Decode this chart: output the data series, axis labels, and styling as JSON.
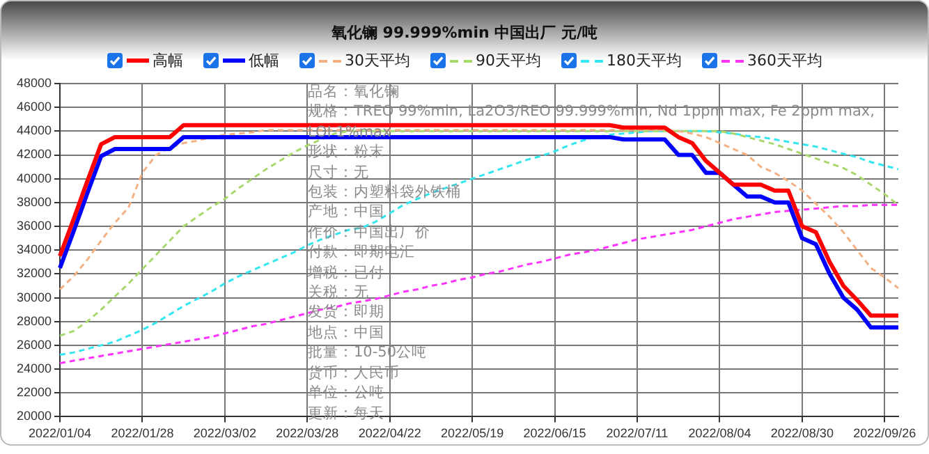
{
  "chart_data": {
    "type": "line",
    "title": "氧化镧 99.999%min 中国出厂 元/吨",
    "categories": [
      "2022/01/04",
      null,
      null,
      null,
      null,
      null,
      "2022/01/28",
      null,
      null,
      null,
      null,
      null,
      "2022/03/02",
      null,
      null,
      null,
      null,
      null,
      "2022/03/28",
      null,
      null,
      null,
      null,
      null,
      "2022/04/22",
      null,
      null,
      null,
      null,
      null,
      "2022/05/19",
      null,
      null,
      null,
      null,
      null,
      "2022/06/15",
      null,
      null,
      null,
      null,
      null,
      "2022/07/11",
      null,
      null,
      null,
      null,
      null,
      "2022/08/04",
      null,
      null,
      null,
      null,
      null,
      "2022/08/30",
      null,
      null,
      null,
      null,
      null,
      "2022/09/26",
      null
    ],
    "series": [
      {
        "name": "高幅",
        "color": "#ff0000",
        "line_style": "solid",
        "values": [
          33500,
          36600,
          39800,
          42900,
          43500,
          43500,
          43500,
          43500,
          43500,
          44500,
          44500,
          44500,
          44500,
          44500,
          44500,
          44500,
          44500,
          44500,
          44500,
          44500,
          44500,
          44500,
          44500,
          44500,
          44500,
          44500,
          44500,
          44500,
          44500,
          44500,
          44500,
          44500,
          44500,
          44500,
          44500,
          44500,
          44500,
          44500,
          44500,
          44500,
          44500,
          44300,
          44300,
          44300,
          44300,
          43500,
          43000,
          41500,
          40500,
          39500,
          39500,
          39500,
          39000,
          39000,
          36000,
          35500,
          33000,
          31000,
          29800,
          28500,
          28500,
          28500
        ]
      },
      {
        "name": "低幅",
        "color": "#0000ff",
        "line_style": "solid",
        "values": [
          32500,
          35600,
          38800,
          41900,
          42500,
          42500,
          42500,
          42500,
          42500,
          43500,
          43500,
          43500,
          43500,
          43500,
          43500,
          43500,
          43500,
          43500,
          43500,
          43500,
          43500,
          43500,
          43500,
          43500,
          43500,
          43500,
          43500,
          43500,
          43500,
          43500,
          43500,
          43500,
          43500,
          43500,
          43500,
          43500,
          43500,
          43500,
          43500,
          43500,
          43500,
          43300,
          43300,
          43300,
          43300,
          42000,
          42000,
          40500,
          40500,
          39500,
          38500,
          38500,
          38000,
          38000,
          35000,
          34500,
          32000,
          30000,
          29000,
          27500,
          27500,
          27500
        ]
      },
      {
        "name": "30天平均",
        "color": "#f4b183",
        "line_style": "dashed",
        "values": [
          30700,
          31800,
          33200,
          34800,
          36300,
          37600,
          40500,
          42000,
          42600,
          43000,
          43200,
          43500,
          43700,
          43800,
          43900,
          44100,
          44100,
          44100,
          44100,
          44100,
          44100,
          44100,
          44100,
          44100,
          44100,
          44100,
          44100,
          44100,
          44100,
          44100,
          44100,
          44100,
          44100,
          44100,
          44100,
          44100,
          44100,
          44100,
          44100,
          44100,
          44100,
          44100,
          44100,
          44100,
          44100,
          44000,
          43800,
          43500,
          43000,
          42500,
          42000,
          41000,
          40500,
          39800,
          39000,
          37900,
          36800,
          35500,
          34000,
          32500,
          31700,
          30800
        ]
      },
      {
        "name": "90天平均",
        "color": "#a9d86e",
        "line_style": "dashed",
        "values": [
          26800,
          27200,
          28000,
          29000,
          30100,
          31200,
          32400,
          33600,
          34800,
          36000,
          36800,
          37600,
          38300,
          39200,
          40000,
          40800,
          41500,
          42200,
          42800,
          43300,
          43800,
          44000,
          44000,
          44000,
          44000,
          44000,
          44000,
          44000,
          44000,
          44000,
          44000,
          44000,
          44000,
          44000,
          44000,
          44000,
          44000,
          44000,
          44000,
          44000,
          44000,
          44000,
          44000,
          44000,
          44000,
          44000,
          44000,
          44000,
          44000,
          43800,
          43500,
          43200,
          42900,
          42500,
          42100,
          41700,
          41300,
          40900,
          40300,
          39500,
          38700,
          37800
        ]
      },
      {
        "name": "180天平均",
        "color": "#33e6f0",
        "line_style": "dashed",
        "values": [
          25200,
          25400,
          25700,
          26000,
          26300,
          26800,
          27300,
          27900,
          28600,
          29300,
          29900,
          30500,
          31200,
          31800,
          32300,
          32800,
          33300,
          33800,
          34400,
          34900,
          35300,
          35700,
          35900,
          36400,
          37100,
          37800,
          38300,
          38800,
          39200,
          39600,
          40000,
          40400,
          40800,
          41200,
          41600,
          41900,
          42300,
          42800,
          43200,
          43500,
          43700,
          43800,
          43900,
          44000,
          44000,
          44000,
          44000,
          44000,
          43900,
          43800,
          43600,
          43500,
          43300,
          43100,
          42900,
          42700,
          42400,
          42100,
          41800,
          41400,
          41100,
          40800
        ]
      },
      {
        "name": "360天平均",
        "color": "#ff33ff",
        "line_style": "dashed",
        "values": [
          24500,
          24700,
          24900,
          25100,
          25300,
          25500,
          25700,
          25900,
          26100,
          26300,
          26500,
          26700,
          27000,
          27300,
          27600,
          27800,
          28100,
          28400,
          28700,
          29000,
          29200,
          29500,
          29700,
          29900,
          30200,
          30500,
          30700,
          31000,
          31200,
          31500,
          31700,
          32000,
          32200,
          32500,
          32800,
          33000,
          33300,
          33600,
          33800,
          34000,
          34300,
          34600,
          34900,
          35100,
          35300,
          35500,
          35700,
          36000,
          36300,
          36600,
          36800,
          37000,
          37200,
          37300,
          37400,
          37500,
          37600,
          37700,
          37700,
          37800,
          37800,
          37800
        ]
      }
    ],
    "ylim": [
      20000,
      48000
    ],
    "yticks": [
      20000,
      22000,
      24000,
      26000,
      28000,
      30000,
      32000,
      34000,
      36000,
      38000,
      40000,
      42000,
      44000,
      46000,
      48000
    ],
    "grid": true,
    "legend": "top",
    "marker": "none",
    "annotations": [
      "品名：氧化镧",
      "规格：TREO 99%min, La2O3/REO 99.999%min, Nd 1ppm max, Fe 2ppm max, LOI 1%max",
      "形状：粉末",
      "尺寸：无",
      "包装：内塑料袋外铁桶",
      "产地：中国",
      "作价：中国出厂价",
      "付款：即期电汇",
      "增税：已付",
      "关税：无",
      "发货：即期",
      "地点：中国",
      "批量：10-50公吨",
      "货币：人民币",
      "单位：公吨",
      "更新：每天"
    ]
  }
}
